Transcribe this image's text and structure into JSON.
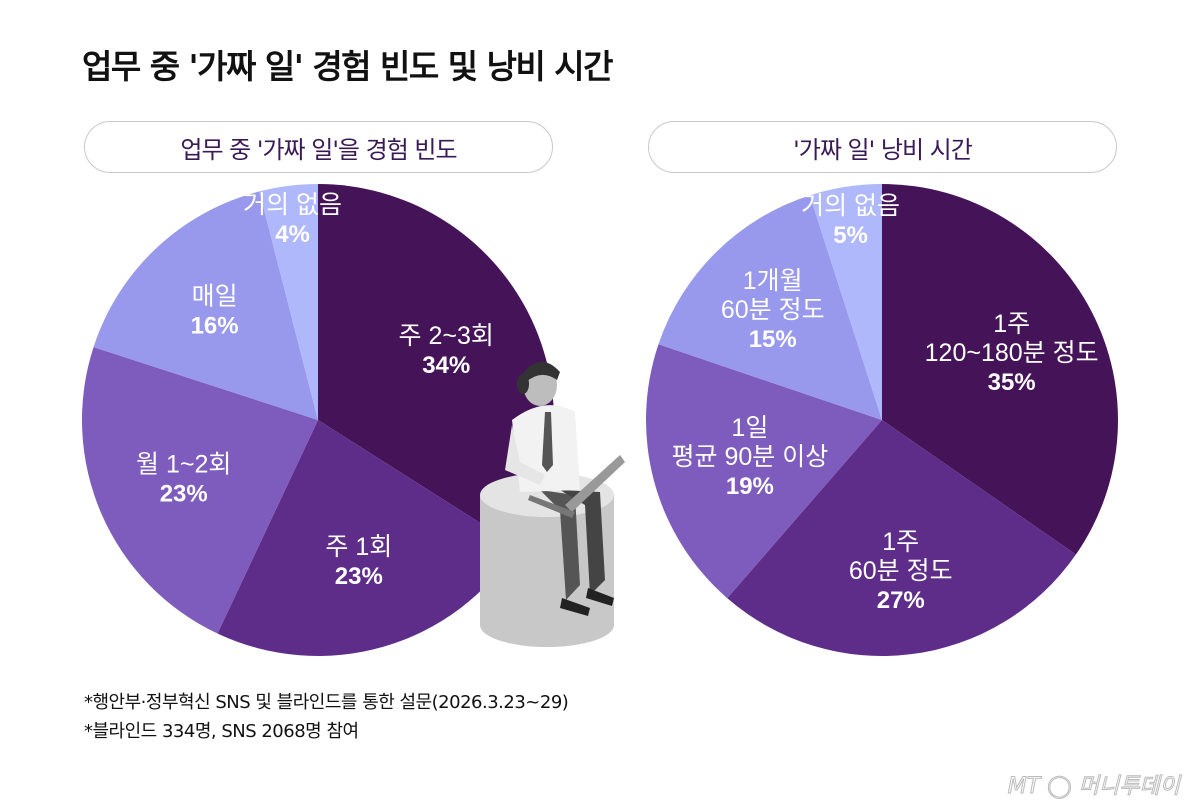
{
  "title": "업무 중 '가짜 일' 경험 빈도 및 낭비 시간",
  "chart_data": [
    {
      "type": "pie",
      "title": "업무 중 '가짜 일'을 경험 빈도",
      "categories": [
        [
          "주 2~3회"
        ],
        [
          "주 1회"
        ],
        [
          "월 1~2회"
        ],
        [
          "매일"
        ],
        [
          "거의 없음"
        ]
      ],
      "values": [
        34,
        23,
        23,
        16,
        4
      ],
      "value_labels": [
        "34%",
        "23%",
        "23%",
        "16%",
        "4%"
      ],
      "colors": [
        "#451458",
        "#5e2d8a",
        "#7d5cbd",
        "#9898ec",
        "#b0b8fc"
      ]
    },
    {
      "type": "pie",
      "title": "'가짜 일' 낭비 시간",
      "categories": [
        [
          "1주",
          "120~180분 정도"
        ],
        [
          "1주",
          "60분 정도"
        ],
        [
          "1일",
          "평균 90분 이상"
        ],
        [
          "1개월",
          "60분 정도"
        ],
        [
          "거의 없음"
        ]
      ],
      "values": [
        35,
        27,
        19,
        15,
        5
      ],
      "value_labels": [
        "35%",
        "27%",
        "19%",
        "15%",
        "5%"
      ],
      "colors": [
        "#451458",
        "#5e2d8a",
        "#7d5cbd",
        "#9898ec",
        "#b0b8fc"
      ]
    }
  ],
  "notes": [
    "*행안부·정부혁신 SNS 및 블라인드를 통한 설문(2026.3.23~29)",
    "*블라인드 334명, SNS 2068명 참여"
  ],
  "logo": "MT 머니투데이"
}
